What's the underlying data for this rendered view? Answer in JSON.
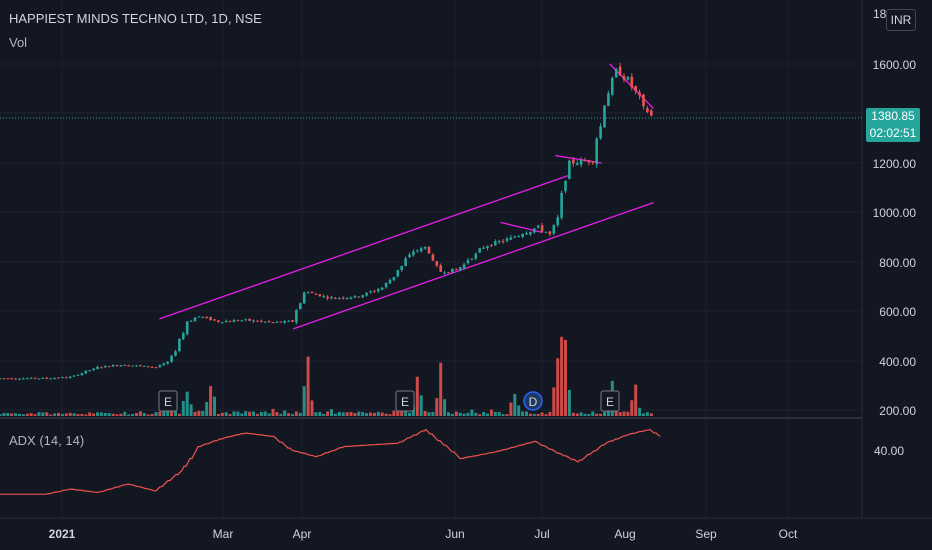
{
  "header": {
    "title": "HAPPIEST MINDS TECHNO LTD, 1D, NSE",
    "volume_label": "Vol",
    "adx_label": "ADX (14, 14)",
    "currency_button": "INR",
    "partial_top_label": "18",
    "partial_top_label_right": "0"
  },
  "last_price": {
    "value": "1380.85",
    "countdown": "02:02:51"
  },
  "colors": {
    "up": "#26a69a",
    "down": "#ef5350",
    "trendline": "#e91ee9",
    "adx": "#f0524f",
    "background": "#131722",
    "grid": "#1e222d"
  },
  "chart_data": {
    "type": "candlestick",
    "price_axis": {
      "range": [
        160,
        1860
      ],
      "ticks": [
        "1600.00",
        "1400.00",
        "1200.00",
        "1000.00",
        "800.00",
        "600.00",
        "400.00",
        "200.00"
      ]
    },
    "adx_axis": {
      "ticks": [
        "40.00"
      ]
    },
    "x_axis": {
      "ticks": [
        "2021",
        "Mar",
        "Apr",
        "Jun",
        "Jul",
        "Sep",
        "Oct",
        "Aug"
      ]
    },
    "events": [
      "E",
      "E",
      "D",
      "E"
    ],
    "price_points": [
      [
        "2021-01-01",
        330
      ],
      [
        "2021-01-10",
        335
      ],
      [
        "2021-01-20",
        375
      ],
      [
        "2021-01-29",
        385
      ],
      [
        "2021-02-10",
        375
      ],
      [
        "2021-02-15",
        395
      ],
      [
        "2021-02-22",
        560
      ],
      [
        "2021-02-26",
        580
      ],
      [
        "2021-03-05",
        560
      ],
      [
        "2021-03-15",
        565
      ],
      [
        "2021-03-25",
        555
      ],
      [
        "2021-04-01",
        560
      ],
      [
        "2021-04-06",
        680
      ],
      [
        "2021-04-15",
        655
      ],
      [
        "2021-04-25",
        660
      ],
      [
        "2021-05-05",
        700
      ],
      [
        "2021-05-15",
        840
      ],
      [
        "2021-05-20",
        860
      ],
      [
        "2021-05-25",
        760
      ],
      [
        "2021-06-01",
        770
      ],
      [
        "2021-06-10",
        860
      ],
      [
        "2021-06-20",
        895
      ],
      [
        "2021-06-30",
        940
      ],
      [
        "2021-07-05",
        910
      ],
      [
        "2021-07-08",
        1010
      ],
      [
        "2021-07-11",
        1200
      ],
      [
        "2021-07-20",
        1210
      ],
      [
        "2021-07-25",
        1440
      ],
      [
        "2021-07-28",
        1580
      ],
      [
        "2021-08-03",
        1530
      ],
      [
        "2021-08-08",
        1420
      ],
      [
        "2021-08-12",
        1380
      ]
    ],
    "volume_points": [
      [
        "2021-02-15",
        120
      ],
      [
        "2021-02-22",
        200
      ],
      [
        "2021-03-03",
        250
      ],
      [
        "2021-04-07",
        340
      ],
      [
        "2021-05-12",
        200
      ],
      [
        "2021-05-18",
        230
      ],
      [
        "2021-05-26",
        260
      ],
      [
        "2021-06-22",
        180
      ],
      [
        "2021-07-08",
        460
      ],
      [
        "2021-07-10",
        790
      ],
      [
        "2021-07-28",
        280
      ],
      [
        "2021-08-05",
        180
      ]
    ],
    "adx_points": [
      [
        "2021-01-01",
        14
      ],
      [
        "2021-01-10",
        17
      ],
      [
        "2021-01-20",
        15
      ],
      [
        "2021-01-31",
        20
      ],
      [
        "2021-02-10",
        16
      ],
      [
        "2021-02-20",
        28
      ],
      [
        "2021-02-26",
        42
      ],
      [
        "2021-03-07",
        47
      ],
      [
        "2021-03-15",
        50
      ],
      [
        "2021-03-25",
        48
      ],
      [
        "2021-04-01",
        40
      ],
      [
        "2021-04-10",
        36
      ],
      [
        "2021-04-20",
        42
      ],
      [
        "2021-05-10",
        44
      ],
      [
        "2021-05-20",
        52
      ],
      [
        "2021-06-02",
        35
      ],
      [
        "2021-06-15",
        39
      ],
      [
        "2021-06-29",
        45
      ],
      [
        "2021-07-08",
        38
      ],
      [
        "2021-07-15",
        33
      ],
      [
        "2021-07-25",
        44
      ],
      [
        "2021-08-02",
        49
      ],
      [
        "2021-08-10",
        52
      ],
      [
        "2021-08-15",
        47
      ],
      [
        "2021-08-20",
        38
      ]
    ]
  }
}
